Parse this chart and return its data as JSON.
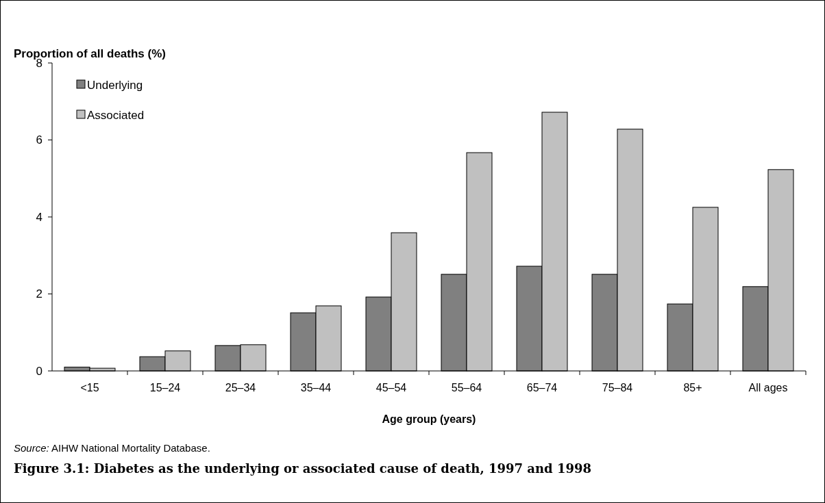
{
  "chart_data": {
    "type": "bar",
    "title": "Figure 3.1: Diabetes as the underlying or associated cause of death, 1997 and 1998",
    "xlabel": "Age group (years)",
    "ylabel": "Proportion of all deaths (%)",
    "annotations": [
      "Source: AIHW National Mortality Database."
    ],
    "categories": [
      "<15",
      "15–24",
      "25–34",
      "35–44",
      "45–54",
      "55–64",
      "65–74",
      "75–84",
      "85+",
      "All ages"
    ],
    "series": [
      {
        "name": "Underlying",
        "color": "#808080",
        "values": [
          0.1,
          0.37,
          0.66,
          1.51,
          1.92,
          2.51,
          2.72,
          2.51,
          1.74,
          2.19
        ]
      },
      {
        "name": "Associated",
        "color": "#c0c0c0",
        "values": [
          0.07,
          0.52,
          0.68,
          1.69,
          3.59,
          5.67,
          6.72,
          6.28,
          4.25,
          5.23
        ]
      }
    ],
    "ylim": [
      0,
      8
    ],
    "yticks": [
      0,
      2,
      4,
      6,
      8
    ],
    "grid": false,
    "legend": "top left"
  }
}
